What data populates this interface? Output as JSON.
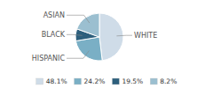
{
  "chart_data": {
    "type": "pie",
    "categories": [
      "WHITE",
      "HISPANIC",
      "BLACK",
      "ASIAN"
    ],
    "values": [
      48.1,
      24.2,
      8.2,
      19.5
    ],
    "colors": [
      "#cfdce8",
      "#7aafc5",
      "#2d5f7c",
      "#9bbfd0"
    ],
    "legend": "bottom",
    "legend_labels": [
      {
        "value": 48.1,
        "label": "48.1%"
      },
      {
        "value": 24.2,
        "label": "24.2%"
      },
      {
        "value": 19.5,
        "label": "19.5%"
      },
      {
        "value": 8.2,
        "label": "8.2%"
      }
    ],
    "legend_colors": [
      "#cfdce8",
      "#7aafc5",
      "#2d5f7c",
      "#9bbfd0"
    ]
  }
}
